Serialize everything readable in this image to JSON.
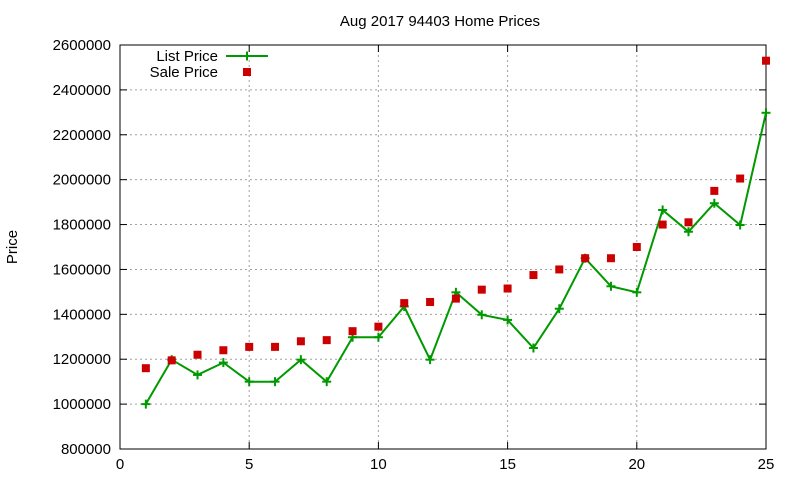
{
  "chart_data": {
    "type": "line",
    "title": "Aug 2017 94403 Home Prices",
    "xlabel": "",
    "ylabel": "Price",
    "xlim": [
      0,
      25
    ],
    "ylim": [
      800000,
      2600000
    ],
    "xticks": [
      0,
      5,
      10,
      15,
      20,
      25
    ],
    "yticks": [
      800000,
      1000000,
      1200000,
      1400000,
      1600000,
      1800000,
      2000000,
      2200000,
      2400000,
      2600000
    ],
    "grid": true,
    "legend_position": "top-left",
    "series": [
      {
        "name": "List Price",
        "style": "lines+cross-markers",
        "color": "#009900",
        "x": [
          1,
          2,
          3,
          4,
          5,
          6,
          7,
          8,
          9,
          10,
          11,
          12,
          13,
          14,
          15,
          16,
          17,
          18,
          19,
          20,
          21,
          22,
          23,
          24,
          25
        ],
        "values": [
          1000000,
          1198000,
          1130000,
          1185000,
          1100000,
          1100000,
          1198000,
          1100000,
          1298000,
          1298000,
          1435000,
          1198000,
          1498000,
          1398000,
          1375000,
          1250000,
          1425000,
          1650000,
          1525000,
          1498000,
          1865000,
          1768000,
          1895000,
          1798000,
          2298000
        ]
      },
      {
        "name": "Sale Price",
        "style": "square-markers",
        "color": "#cc0000",
        "x": [
          1,
          2,
          3,
          4,
          5,
          6,
          7,
          8,
          9,
          10,
          11,
          12,
          13,
          14,
          15,
          16,
          17,
          18,
          19,
          20,
          21,
          22,
          23,
          24,
          25
        ],
        "values": [
          1160000,
          1195000,
          1220000,
          1240000,
          1255000,
          1255000,
          1280000,
          1285000,
          1325000,
          1345000,
          1450000,
          1455000,
          1470000,
          1510000,
          1515000,
          1575000,
          1600000,
          1650000,
          1650000,
          1700000,
          1800000,
          1810000,
          1950000,
          2005000,
          2530000
        ]
      }
    ]
  }
}
